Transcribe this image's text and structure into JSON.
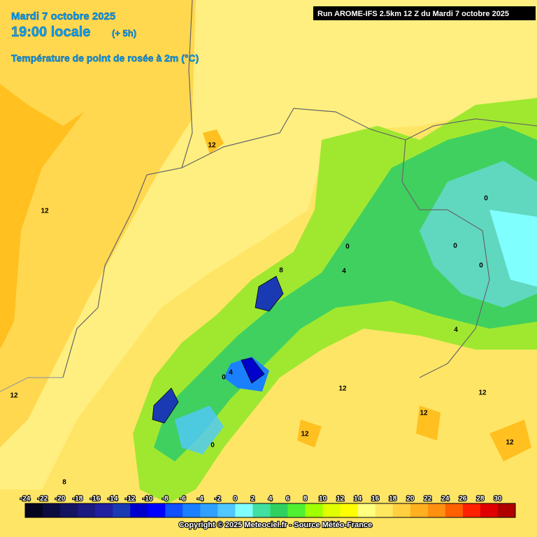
{
  "header": {
    "date": "Mardi 7 octobre 2025",
    "time": "19:00 locale",
    "lead": "(+ 5h)",
    "parameter": "Température de point de rosée à 2m (°C)",
    "run": "Run AROME-IFS 2.5km 12 Z du Mardi 7 octobre 2025"
  },
  "legend": {
    "ticks": [
      -24,
      -22,
      -20,
      -18,
      -16,
      -14,
      -12,
      -10,
      -8,
      -6,
      -4,
      -2,
      0,
      2,
      4,
      6,
      8,
      10,
      12,
      14,
      16,
      18,
      20,
      22,
      24,
      26,
      28,
      30
    ],
    "colors": [
      "#050520",
      "#0c0c40",
      "#141460",
      "#1a1a80",
      "#2020a0",
      "#1a3ab4",
      "#0000cd",
      "#0000ff",
      "#1050ff",
      "#1a80ff",
      "#30a0ff",
      "#50c8ff",
      "#80ffff",
      "#40e0a0",
      "#30d060",
      "#50f030",
      "#a0ff00",
      "#e0ff00",
      "#ffff00",
      "#ffff80",
      "#ffe860",
      "#ffd040",
      "#ffb020",
      "#ff9010",
      "#ff6000",
      "#ff2000",
      "#e00000",
      "#b00000"
    ]
  },
  "map_labels": [
    "12",
    "12",
    "12",
    "0",
    "0",
    "0",
    "0",
    "4",
    "4",
    "8",
    "4",
    "0",
    "12",
    "12",
    "12",
    "12",
    "0",
    "8",
    "12"
  ],
  "copyright": "Copyright © 2025 Meteociel.fr - Source Météo-France"
}
